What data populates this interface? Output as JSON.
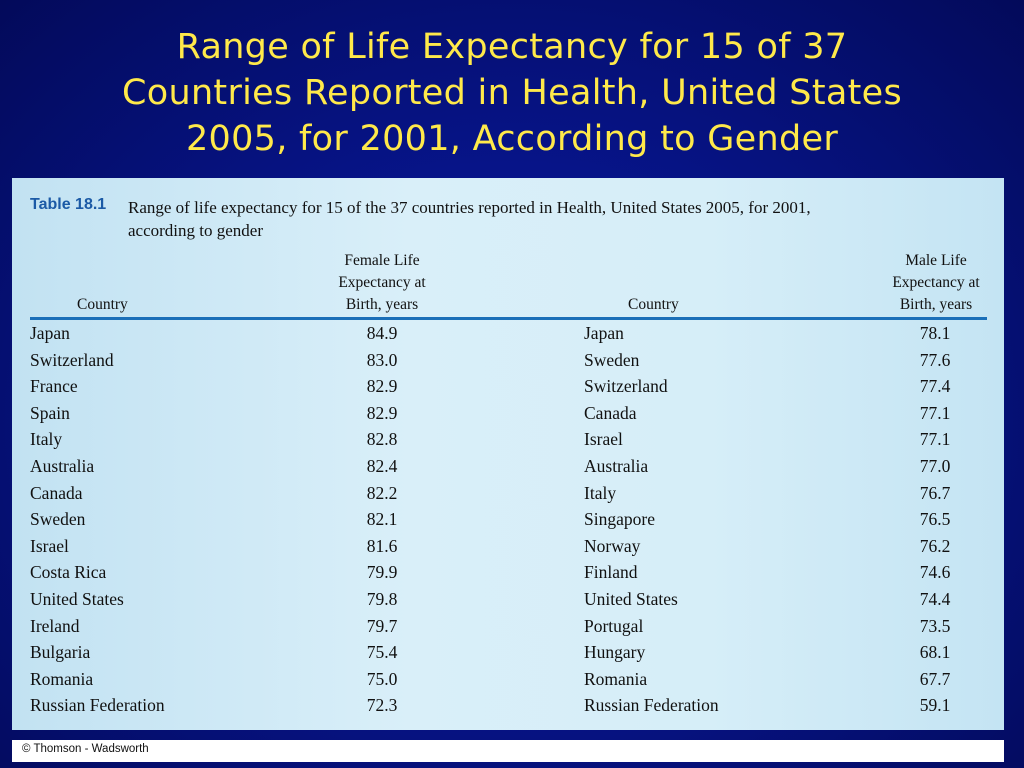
{
  "slide": {
    "title_lines": [
      "Range of Life Expectancy for 15 of 37",
      "Countries Reported in Health, United States",
      "2005, for 2001, According to Gender"
    ]
  },
  "table": {
    "number": "Table 18.1",
    "caption_line1": "Range of life expectancy for 15 of the 37 countries reported in Health, United States 2005, for 2001,",
    "caption_line2": "according to gender",
    "headers": {
      "female_country": "Country",
      "female_value": [
        "Female Life",
        "Expectancy at",
        "Birth, years"
      ],
      "male_country": "Country",
      "male_value": [
        "Male Life",
        "Expectancy at",
        "Birth, years"
      ]
    },
    "rows": [
      {
        "female_country": "Japan",
        "female_value": "84.9",
        "male_country": "Japan",
        "male_value": "78.1"
      },
      {
        "female_country": "Switzerland",
        "female_value": "83.0",
        "male_country": "Sweden",
        "male_value": "77.6"
      },
      {
        "female_country": "France",
        "female_value": "82.9",
        "male_country": "Switzerland",
        "male_value": "77.4"
      },
      {
        "female_country": "Spain",
        "female_value": "82.9",
        "male_country": "Canada",
        "male_value": "77.1"
      },
      {
        "female_country": "Italy",
        "female_value": "82.8",
        "male_country": "Israel",
        "male_value": "77.1"
      },
      {
        "female_country": "Australia",
        "female_value": "82.4",
        "male_country": "Australia",
        "male_value": "77.0"
      },
      {
        "female_country": "Canada",
        "female_value": "82.2",
        "male_country": "Italy",
        "male_value": "76.7"
      },
      {
        "female_country": "Sweden",
        "female_value": "82.1",
        "male_country": "Singapore",
        "male_value": "76.5"
      },
      {
        "female_country": "Israel",
        "female_value": "81.6",
        "male_country": "Norway",
        "male_value": "76.2"
      },
      {
        "female_country": "Costa Rica",
        "female_value": "79.9",
        "male_country": "Finland",
        "male_value": "74.6"
      },
      {
        "female_country": "United States",
        "female_value": "79.8",
        "male_country": "United States",
        "male_value": "74.4"
      },
      {
        "female_country": "Ireland",
        "female_value": "79.7",
        "male_country": "Portugal",
        "male_value": "73.5"
      },
      {
        "female_country": "Bulgaria",
        "female_value": "75.4",
        "male_country": "Hungary",
        "male_value": "68.1"
      },
      {
        "female_country": "Romania",
        "female_value": "75.0",
        "male_country": "Romania",
        "male_value": "67.7"
      },
      {
        "female_country": "Russian Federation",
        "female_value": "72.3",
        "male_country": "Russian Federation",
        "male_value": "59.1"
      }
    ]
  },
  "footer": {
    "copyright": "© Thomson - Wadsworth"
  },
  "colors": {
    "background": "#06127f",
    "title": "#ffe94a",
    "panel": "#d6eef8",
    "table_label": "#1b5aa6",
    "rule": "#1b6fb8"
  }
}
